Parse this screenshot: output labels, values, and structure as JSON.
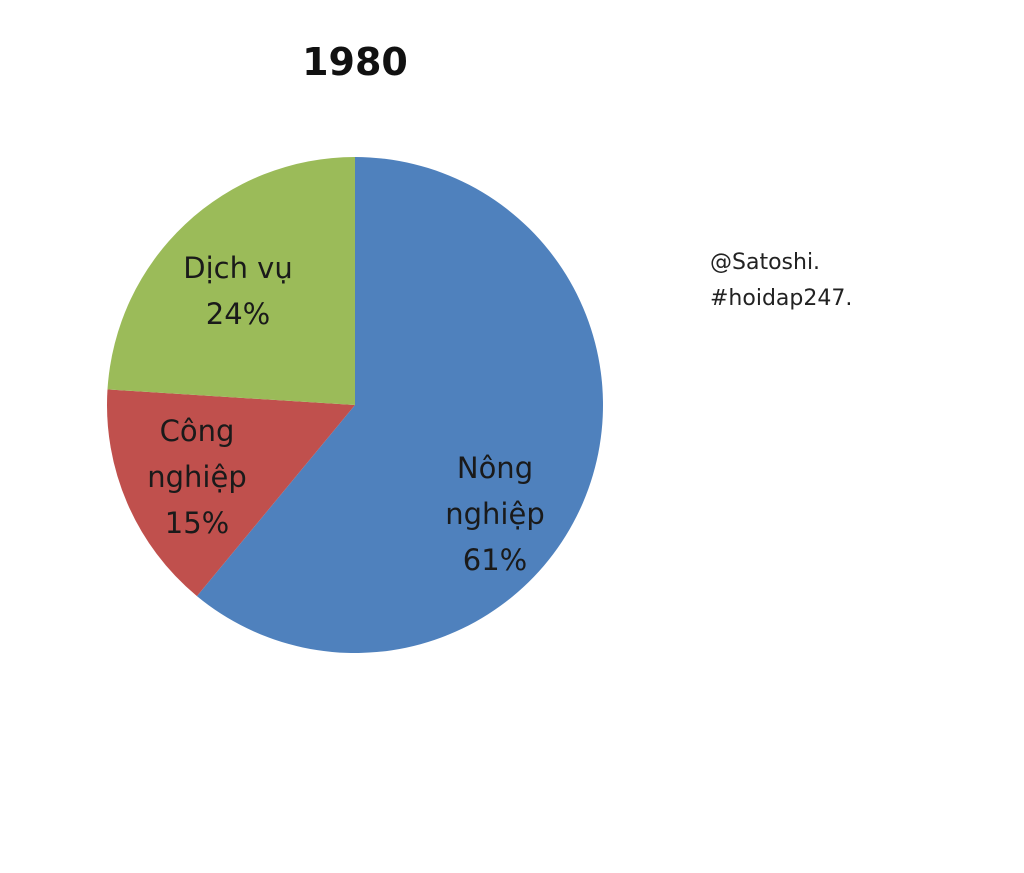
{
  "chart_data": {
    "type": "pie",
    "title": "1980",
    "categories": [
      "Nông nghiệp",
      "Công nghiệp",
      "Dịch vụ"
    ],
    "values": [
      61,
      15,
      24
    ],
    "value_labels": [
      "61%",
      "15%",
      "24%"
    ],
    "colors": [
      "#4f81bd",
      "#c0504d",
      "#9bbb59"
    ],
    "annotations": [
      "@Satoshi.",
      "#hoidap247."
    ]
  }
}
